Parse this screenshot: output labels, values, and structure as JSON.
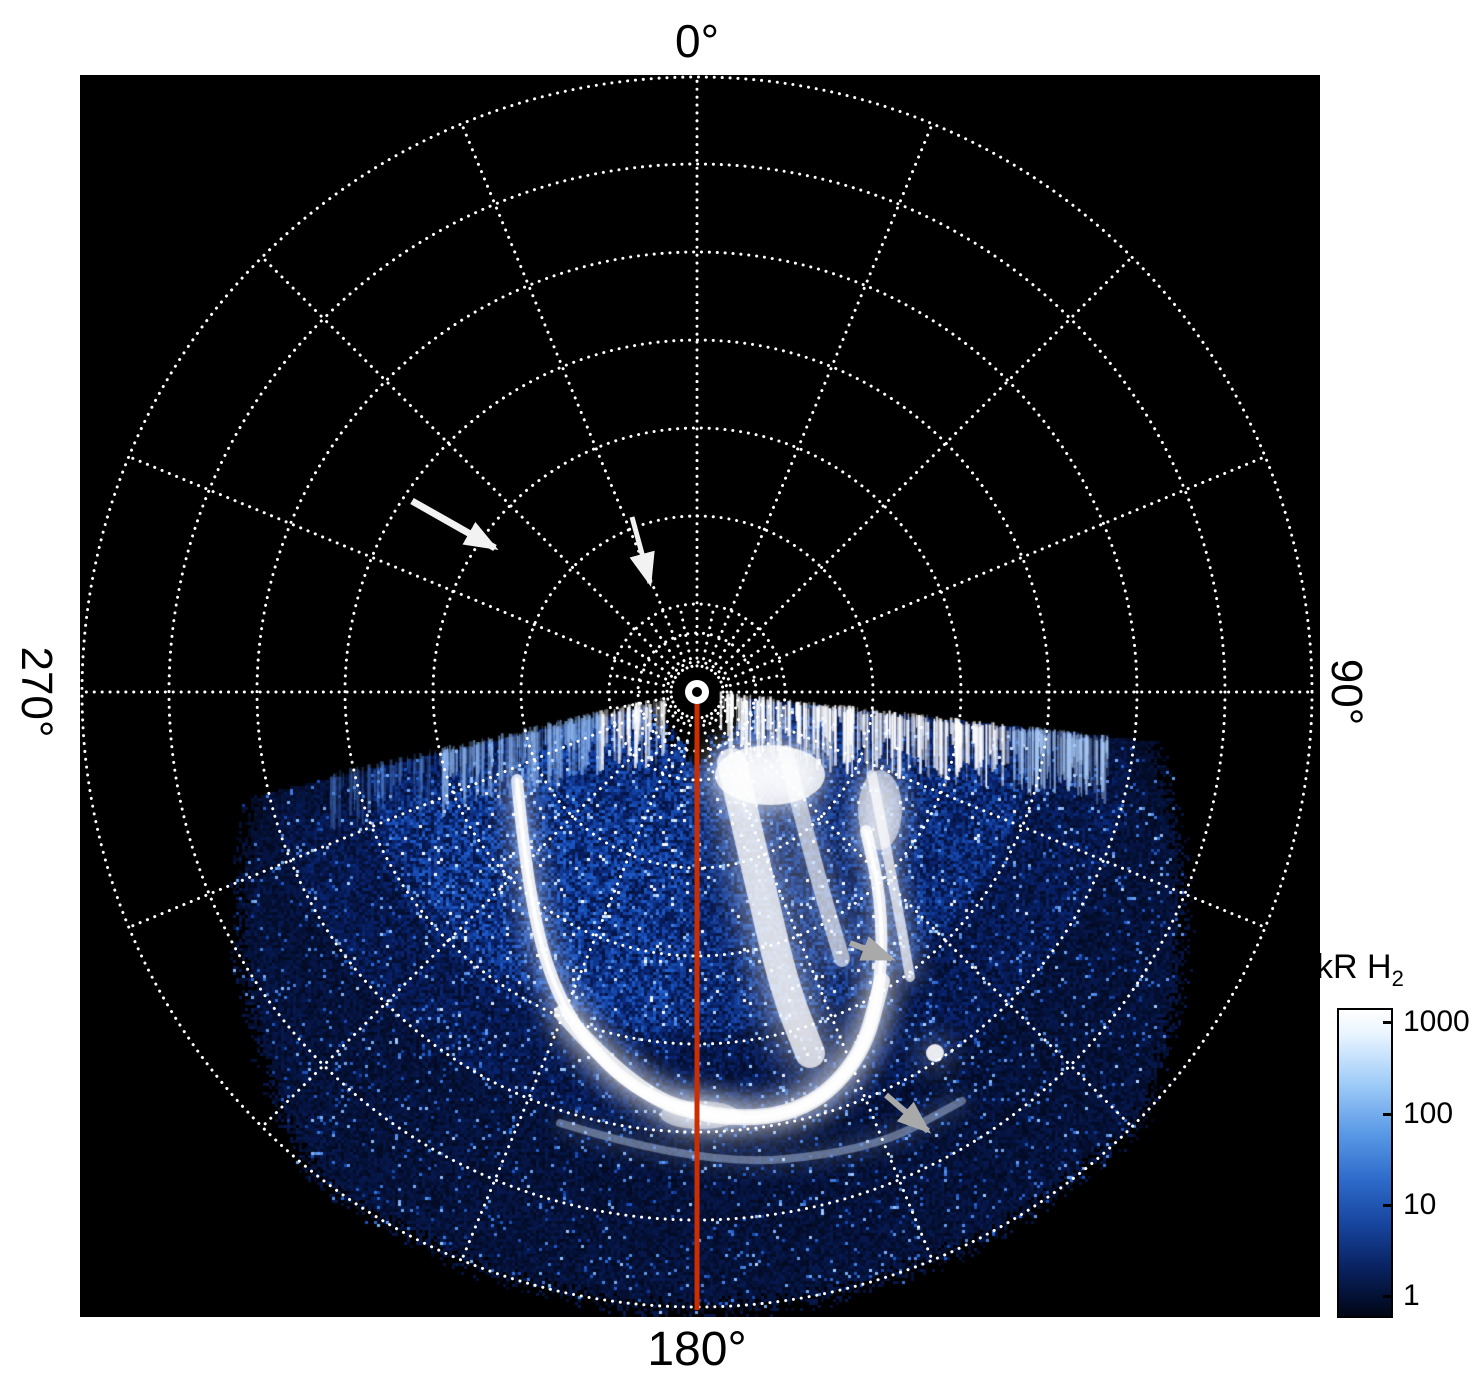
{
  "figure": {
    "page_bg": "#ffffff",
    "plot_bg": "#000000",
    "grid_color": "#ffffff",
    "meridian_color": "#cc2e02",
    "annotation_colors": {
      "white": "#f2f2f2",
      "gray": "#a9a9a9"
    },
    "angle_labels": {
      "top": "0°",
      "right": "90°",
      "bottom": "180°",
      "left": "270°"
    }
  },
  "colorbar": {
    "title_main": "kR H",
    "title_sub": "2",
    "ticks": [
      "1000",
      "100",
      "10",
      "1"
    ],
    "gradient": [
      "#ffffff 0%",
      "#e8f4ff 8%",
      "#9fccf8 24%",
      "#5b9ae6 40%",
      "#2f6ccc 55%",
      "#17459e 70%",
      "#0a2566 83%",
      "#041238 93%",
      "#010715 100%"
    ]
  },
  "chart_data": {
    "type": "heatmap",
    "projection": "polar",
    "description": "Polar projection image of auroral H2 emission. Observed data fills the sector from about 96° to 257° (clockwise from 0° at top); a bright auroral oval arc with diffuse patchy emission surrounds the pole; a red line marks the 180° meridian; white and gray arrows annotate features.",
    "angular_tick_labels": [
      "0°",
      "90°",
      "180°",
      "270°"
    ],
    "angular_tick_positions_deg": [
      0,
      90,
      180,
      270
    ],
    "radial_gridlines": 7,
    "angular_gridline_step_deg": 22.5,
    "colorbar_label": "kR H2",
    "colorbar_scale": "log",
    "colorbar_tick_values": [
      1000,
      100,
      10,
      1
    ],
    "intensity_range_kR": [
      1,
      1000
    ],
    "data_sector_deg": [
      96,
      257
    ],
    "highlight_meridian_deg": 180,
    "annotations": [
      {
        "id": "annotation-arrow-white-large",
        "color": "white",
        "region": "upper-left quadrant, pointing down-right"
      },
      {
        "id": "annotation-arrow-white-small",
        "color": "white",
        "region": "above pole, pointing down"
      },
      {
        "id": "annotation-arrow-gray-upper",
        "color": "gray",
        "region": "inside aurora, mid-right, pointing right"
      },
      {
        "id": "annotation-arrow-gray-lower",
        "color": "gray",
        "region": "inside aurora, lower-right, pointing down-right"
      }
    ]
  }
}
